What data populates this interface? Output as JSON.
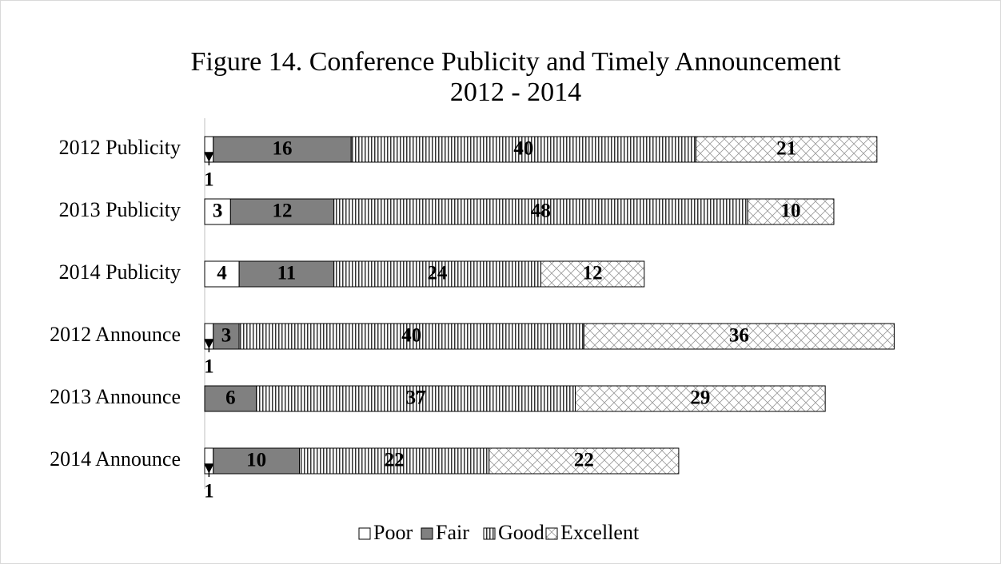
{
  "chart_data": {
    "type": "stacked-bar-horizontal",
    "title": "Figure 14. Conference Publicity and Timely Announcement",
    "subtitle": "2012 - 2014",
    "categories": [
      "2012 Publicity",
      "2013 Publicity",
      "2014 Publicity",
      "2012 Announce",
      "2013 Announce",
      "2014 Announce"
    ],
    "series": [
      {
        "name": "Poor",
        "color": "#ffffff",
        "values": [
          1,
          3,
          4,
          1,
          null,
          1
        ]
      },
      {
        "name": "Fair",
        "color": "#808080",
        "values": [
          16,
          12,
          11,
          3,
          6,
          10
        ]
      },
      {
        "name": "Good",
        "color": "vertical-stripes",
        "values": [
          40,
          48,
          24,
          40,
          37,
          22
        ]
      },
      {
        "name": "Excellent",
        "color": "diagonal-hatch",
        "values": [
          21,
          10,
          12,
          36,
          29,
          22
        ]
      }
    ],
    "legend": "bottom"
  }
}
